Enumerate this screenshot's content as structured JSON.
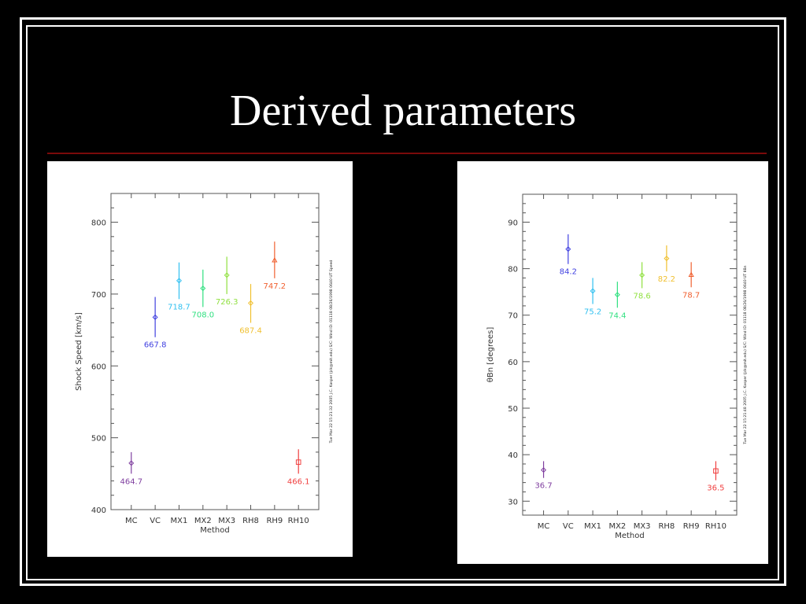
{
  "slide": {
    "title": "Derived parameters"
  },
  "chart_data": [
    {
      "type": "scatter",
      "xlabel": "Method",
      "ylabel": "Shock Speed [km/s]",
      "ylim": [
        400,
        840
      ],
      "yticks": [
        400,
        500,
        600,
        700,
        800
      ],
      "categories": [
        "MC",
        "VC",
        "MX1",
        "MX2",
        "MX3",
        "RH8",
        "RH9",
        "RH10"
      ],
      "points": [
        {
          "category": "MC",
          "value": 464.7,
          "err_low": 450,
          "err_high": 480,
          "label": "464.7",
          "color": "#8040a0",
          "marker": "diamond"
        },
        {
          "category": "VC",
          "value": 667.8,
          "err_low": 640,
          "err_high": 696,
          "label": "667.8",
          "color": "#4040e0",
          "marker": "diamond"
        },
        {
          "category": "MX1",
          "value": 718.7,
          "err_low": 693,
          "err_high": 744,
          "label": "718.7",
          "color": "#30c0f0",
          "marker": "diamond"
        },
        {
          "category": "MX2",
          "value": 708.0,
          "err_low": 682,
          "err_high": 734,
          "label": "708.0",
          "color": "#30e080",
          "marker": "diamond"
        },
        {
          "category": "MX3",
          "value": 726.3,
          "err_low": 700,
          "err_high": 752,
          "label": "726.3",
          "color": "#90e040",
          "marker": "diamond"
        },
        {
          "category": "RH8",
          "value": 687.4,
          "err_low": 660,
          "err_high": 714,
          "label": "687.4",
          "color": "#f0c030",
          "marker": "diamond"
        },
        {
          "category": "RH9",
          "value": 747.2,
          "err_low": 722,
          "err_high": 773,
          "label": "747.2",
          "color": "#f06030",
          "marker": "triangle"
        },
        {
          "category": "RH10",
          "value": 466.1,
          "err_low": 450,
          "err_high": 484,
          "label": "466.1",
          "color": "#f04040",
          "marker": "square"
        }
      ],
      "side_caption": "Tue Mar 22 15:21:32 2005  J.C. Kasper (jck@mit.edu)   S/C: Wind ID: 01118 08/26/1998  0640 UT Speed"
    },
    {
      "type": "scatter",
      "xlabel": "Method",
      "ylabel": "θBn [degrees]",
      "ylim": [
        27,
        96
      ],
      "yticks": [
        30,
        40,
        50,
        60,
        70,
        80,
        90
      ],
      "categories": [
        "MC",
        "VC",
        "MX1",
        "MX2",
        "MX3",
        "RH8",
        "RH9",
        "RH10"
      ],
      "points": [
        {
          "category": "MC",
          "value": 36.7,
          "err_low": 35.0,
          "err_high": 38.6,
          "label": "36.7",
          "color": "#8040a0",
          "marker": "diamond"
        },
        {
          "category": "VC",
          "value": 84.2,
          "err_low": 81.0,
          "err_high": 87.4,
          "label": "84.2",
          "color": "#4040e0",
          "marker": "diamond"
        },
        {
          "category": "MX1",
          "value": 75.2,
          "err_low": 72.4,
          "err_high": 78.0,
          "label": "75.2",
          "color": "#30c0f0",
          "marker": "diamond"
        },
        {
          "category": "MX2",
          "value": 74.4,
          "err_low": 71.6,
          "err_high": 77.2,
          "label": "74.4",
          "color": "#30e080",
          "marker": "diamond"
        },
        {
          "category": "MX3",
          "value": 78.6,
          "err_low": 75.8,
          "err_high": 81.4,
          "label": "78.6",
          "color": "#90e040",
          "marker": "diamond"
        },
        {
          "category": "RH8",
          "value": 82.2,
          "err_low": 79.4,
          "err_high": 85.0,
          "label": "82.2",
          "color": "#f0c030",
          "marker": "diamond"
        },
        {
          "category": "RH9",
          "value": 78.7,
          "err_low": 76.0,
          "err_high": 81.4,
          "label": "78.7",
          "color": "#f06030",
          "marker": "triangle"
        },
        {
          "category": "RH10",
          "value": 36.5,
          "err_low": 34.5,
          "err_high": 38.6,
          "label": "36.5",
          "color": "#f04040",
          "marker": "square"
        }
      ],
      "side_caption": "Tue Mar 22 15:21:48 2005  J.C. Kasper (jck@mit.edu)   S/C: Wind ID: 01118 08/26/1998  0640 UT θBn"
    }
  ]
}
